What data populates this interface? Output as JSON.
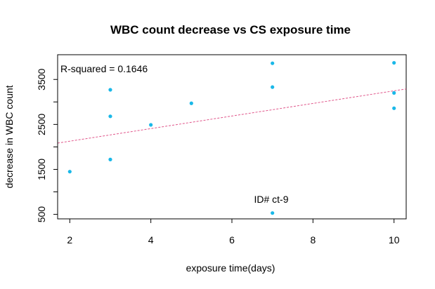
{
  "chart_data": {
    "type": "scatter",
    "title": "WBC count decrease vs CS exposure time",
    "xlabel": "exposure time(days)",
    "ylabel": "decrease in WBC count",
    "xlim": [
      1.7,
      10.3
    ],
    "ylim": [
      400,
      4050
    ],
    "x_ticks": [
      2,
      4,
      6,
      8,
      10
    ],
    "y_ticks": [
      500,
      1000,
      1500,
      2000,
      2500,
      3000,
      3500
    ],
    "y_tick_labels": [
      "500",
      "1500",
      "2500",
      "3500"
    ],
    "points": [
      {
        "x": 2,
        "y": 1450
      },
      {
        "x": 3,
        "y": 1720
      },
      {
        "x": 3,
        "y": 2680
      },
      {
        "x": 3,
        "y": 3270
      },
      {
        "x": 4,
        "y": 2490
      },
      {
        "x": 5,
        "y": 2970
      },
      {
        "x": 7,
        "y": 530
      },
      {
        "x": 7,
        "y": 3330
      },
      {
        "x": 7,
        "y": 3860
      },
      {
        "x": 10,
        "y": 2860
      },
      {
        "x": 10,
        "y": 3200
      },
      {
        "x": 10,
        "y": 3870
      }
    ],
    "point_color": "#1AB8E8",
    "regression_line": {
      "intercept": 1847,
      "slope": 140,
      "color": "#E0558A",
      "style": "dashed"
    },
    "annotations": {
      "r_squared": "R-squared = 0.1646",
      "outlier_label": "ID# ct-9"
    },
    "grid": false
  }
}
